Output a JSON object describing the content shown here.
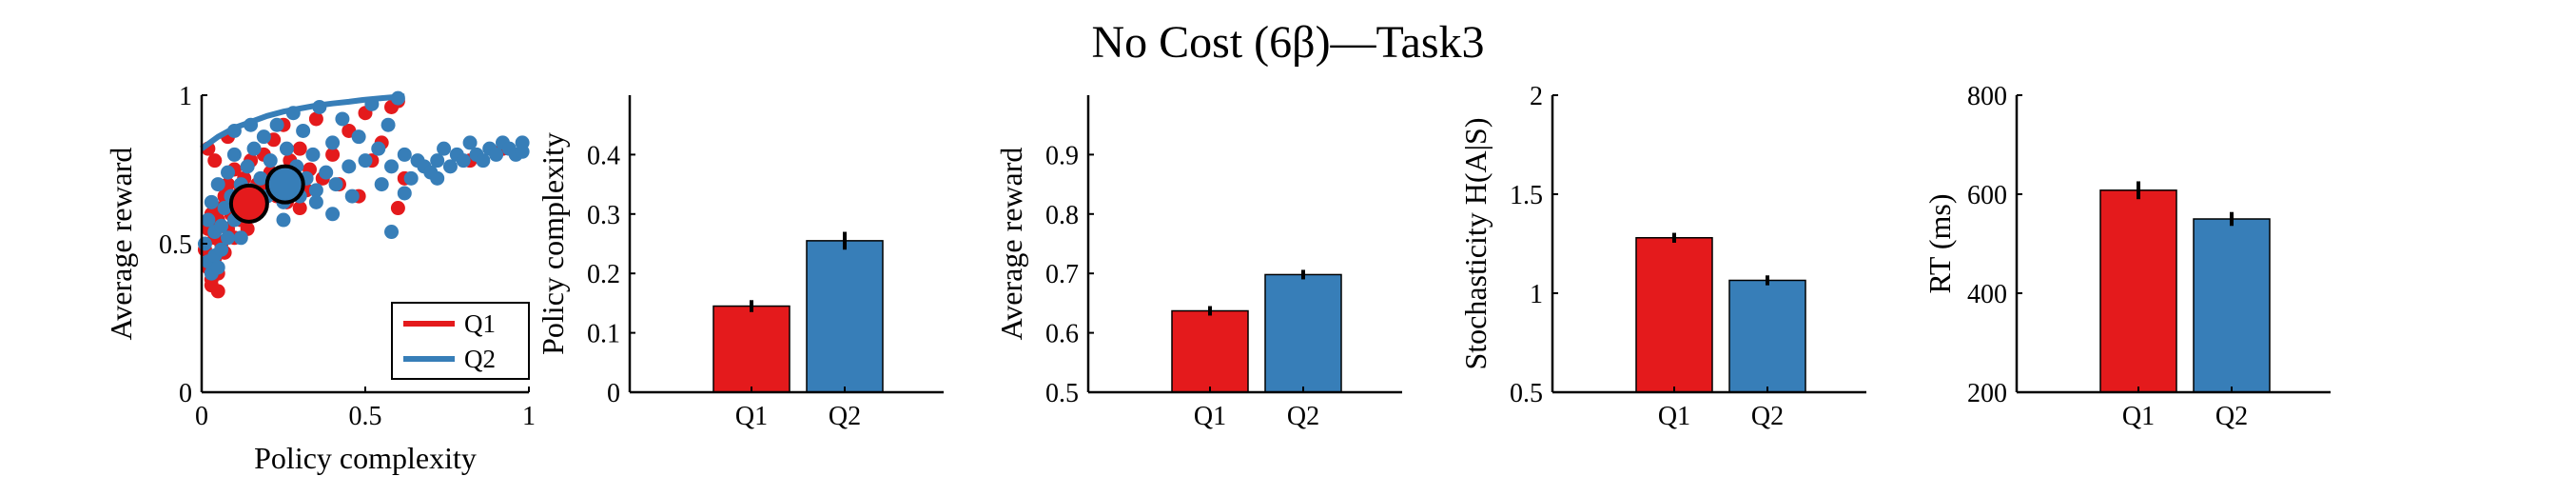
{
  "figure": {
    "title": "No Cost (6β)—Task3",
    "colors": {
      "Q1": "#e41a1c",
      "Q2": "#377eb8"
    }
  },
  "chart_data": [
    {
      "type": "scatter",
      "title": "",
      "xlabel": "Policy complexity",
      "ylabel": "Average reward",
      "xlim": [
        0,
        1
      ],
      "ylim": [
        0,
        1
      ],
      "xticks": [
        "0",
        "0.5",
        "1"
      ],
      "yticks": [
        "0",
        "0.5",
        "1"
      ],
      "legend": {
        "placement": "bottom-right",
        "entries": [
          "Q1",
          "Q2"
        ]
      },
      "series": [
        {
          "name": "Q1",
          "color": "#e41a1c",
          "points": [
            [
              0.01,
              0.48
            ],
            [
              0.02,
              0.55
            ],
            [
              0.02,
              0.42
            ],
            [
              0.03,
              0.6
            ],
            [
              0.03,
              0.38
            ],
            [
              0.04,
              0.52
            ],
            [
              0.04,
              0.45
            ],
            [
              0.05,
              0.58
            ],
            [
              0.05,
              0.4
            ],
            [
              0.06,
              0.62
            ],
            [
              0.06,
              0.5
            ],
            [
              0.07,
              0.47
            ],
            [
              0.07,
              0.66
            ],
            [
              0.08,
              0.55
            ],
            [
              0.08,
              0.7
            ],
            [
              0.09,
              0.6
            ],
            [
              0.1,
              0.52
            ],
            [
              0.1,
              0.75
            ],
            [
              0.11,
              0.63
            ],
            [
              0.12,
              0.58
            ],
            [
              0.12,
              0.68
            ],
            [
              0.13,
              0.72
            ],
            [
              0.14,
              0.55
            ],
            [
              0.15,
              0.65
            ],
            [
              0.15,
              0.78
            ],
            [
              0.16,
              0.6
            ],
            [
              0.17,
              0.7
            ],
            [
              0.18,
              0.62
            ],
            [
              0.19,
              0.8
            ],
            [
              0.2,
              0.68
            ],
            [
              0.21,
              0.74
            ],
            [
              0.22,
              0.85
            ],
            [
              0.23,
              0.66
            ],
            [
              0.24,
              0.72
            ],
            [
              0.25,
              0.9
            ],
            [
              0.26,
              0.64
            ],
            [
              0.27,
              0.78
            ],
            [
              0.28,
              0.7
            ],
            [
              0.3,
              0.82
            ],
            [
              0.32,
              0.68
            ],
            [
              0.33,
              0.75
            ],
            [
              0.35,
              0.92
            ],
            [
              0.37,
              0.72
            ],
            [
              0.4,
              0.8
            ],
            [
              0.42,
              0.7
            ],
            [
              0.45,
              0.88
            ],
            [
              0.48,
              0.66
            ],
            [
              0.5,
              0.94
            ],
            [
              0.52,
              0.78
            ],
            [
              0.55,
              0.84
            ],
            [
              0.58,
              0.96
            ],
            [
              0.6,
              0.98
            ],
            [
              0.62,
              0.72
            ],
            [
              0.02,
              0.82
            ],
            [
              0.04,
              0.78
            ],
            [
              0.03,
              0.36
            ],
            [
              0.05,
              0.34
            ],
            [
              0.08,
              0.86
            ],
            [
              0.3,
              0.62
            ],
            [
              0.6,
              0.62
            ],
            [
              0.82,
              0.78
            ],
            [
              0.92,
              0.82
            ]
          ],
          "mean": [
            0.145,
            0.635
          ]
        },
        {
          "name": "Q2",
          "color": "#377eb8",
          "points": [
            [
              0.01,
              0.5
            ],
            [
              0.02,
              0.58
            ],
            [
              0.02,
              0.44
            ],
            [
              0.03,
              0.64
            ],
            [
              0.04,
              0.54
            ],
            [
              0.04,
              0.46
            ],
            [
              0.05,
              0.7
            ],
            [
              0.06,
              0.56
            ],
            [
              0.06,
              0.48
            ],
            [
              0.07,
              0.62
            ],
            [
              0.08,
              0.74
            ],
            [
              0.08,
              0.52
            ],
            [
              0.09,
              0.66
            ],
            [
              0.1,
              0.58
            ],
            [
              0.1,
              0.8
            ],
            [
              0.11,
              0.64
            ],
            [
              0.12,
              0.7
            ],
            [
              0.13,
              0.6
            ],
            [
              0.14,
              0.76
            ],
            [
              0.15,
              0.68
            ],
            [
              0.16,
              0.82
            ],
            [
              0.17,
              0.62
            ],
            [
              0.18,
              0.72
            ],
            [
              0.19,
              0.86
            ],
            [
              0.2,
              0.66
            ],
            [
              0.21,
              0.78
            ],
            [
              0.22,
              0.7
            ],
            [
              0.23,
              0.9
            ],
            [
              0.24,
              0.74
            ],
            [
              0.25,
              0.64
            ],
            [
              0.26,
              0.82
            ],
            [
              0.27,
              0.7
            ],
            [
              0.28,
              0.94
            ],
            [
              0.29,
              0.76
            ],
            [
              0.3,
              0.66
            ],
            [
              0.31,
              0.88
            ],
            [
              0.32,
              0.72
            ],
            [
              0.34,
              0.8
            ],
            [
              0.35,
              0.68
            ],
            [
              0.36,
              0.96
            ],
            [
              0.38,
              0.74
            ],
            [
              0.4,
              0.84
            ],
            [
              0.41,
              0.7
            ],
            [
              0.43,
              0.92
            ],
            [
              0.45,
              0.76
            ],
            [
              0.46,
              0.66
            ],
            [
              0.48,
              0.86
            ],
            [
              0.5,
              0.78
            ],
            [
              0.52,
              0.97
            ],
            [
              0.54,
              0.82
            ],
            [
              0.55,
              0.7
            ],
            [
              0.57,
              0.9
            ],
            [
              0.58,
              0.76
            ],
            [
              0.6,
              0.99
            ],
            [
              0.62,
              0.8
            ],
            [
              0.64,
              0.72
            ],
            [
              0.66,
              0.78
            ],
            [
              0.68,
              0.76
            ],
            [
              0.7,
              0.74
            ],
            [
              0.72,
              0.78
            ],
            [
              0.74,
              0.82
            ],
            [
              0.76,
              0.76
            ],
            [
              0.78,
              0.8
            ],
            [
              0.8,
              0.78
            ],
            [
              0.82,
              0.84
            ],
            [
              0.84,
              0.8
            ],
            [
              0.86,
              0.78
            ],
            [
              0.88,
              0.82
            ],
            [
              0.9,
              0.8
            ],
            [
              0.92,
              0.84
            ],
            [
              0.94,
              0.82
            ],
            [
              0.96,
              0.8
            ],
            [
              0.98,
              0.84
            ],
            [
              0.98,
              0.81
            ],
            [
              0.03,
              0.4
            ],
            [
              0.05,
              0.42
            ],
            [
              0.12,
              0.52
            ],
            [
              0.25,
              0.58
            ],
            [
              0.4,
              0.6
            ],
            [
              0.58,
              0.54
            ],
            [
              0.62,
              0.67
            ],
            [
              0.35,
              0.64
            ],
            [
              0.72,
              0.72
            ],
            [
              0.15,
              0.9
            ],
            [
              0.1,
              0.88
            ]
          ],
          "mean": [
            0.255,
            0.7
          ]
        }
      ],
      "frontier": [
        [
          0.0,
          0.82
        ],
        [
          0.05,
          0.86
        ],
        [
          0.1,
          0.89
        ],
        [
          0.15,
          0.91
        ],
        [
          0.2,
          0.93
        ],
        [
          0.25,
          0.945
        ],
        [
          0.3,
          0.955
        ],
        [
          0.35,
          0.965
        ],
        [
          0.4,
          0.972
        ],
        [
          0.45,
          0.978
        ],
        [
          0.5,
          0.985
        ],
        [
          0.55,
          0.99
        ],
        [
          0.6,
          0.995
        ],
        [
          0.62,
          0.996
        ]
      ]
    },
    {
      "type": "bar",
      "title": "",
      "xlabel": "",
      "ylabel": "Policy complexity",
      "categories": [
        "Q1",
        "Q2"
      ],
      "values": [
        0.145,
        0.255
      ],
      "errors": [
        0.01,
        0.015
      ],
      "ylim": [
        0,
        0.5
      ],
      "yticks": [
        "0",
        "0.1",
        "0.2",
        "0.3",
        "0.4"
      ]
    },
    {
      "type": "bar",
      "title": "",
      "xlabel": "",
      "ylabel": "Average reward",
      "categories": [
        "Q1",
        "Q2"
      ],
      "values": [
        0.637,
        0.698
      ],
      "errors": [
        0.008,
        0.008
      ],
      "ylim": [
        0.5,
        1.0
      ],
      "yticks": [
        "0.5",
        "0.6",
        "0.7",
        "0.8",
        "0.9"
      ]
    },
    {
      "type": "bar",
      "title": "",
      "xlabel": "",
      "ylabel": "Stochasticity H(A|S)",
      "categories": [
        "Q1",
        "Q2"
      ],
      "values": [
        1.28,
        1.065
      ],
      "errors": [
        0.025,
        0.025
      ],
      "ylim": [
        0.5,
        2.0
      ],
      "yticks": [
        "0.5",
        "1",
        "1.5",
        "2"
      ]
    },
    {
      "type": "bar",
      "title": "",
      "xlabel": "",
      "ylabel": "RT (ms)",
      "categories": [
        "Q1",
        "Q2"
      ],
      "values": [
        608,
        550
      ],
      "errors": [
        18,
        14
      ],
      "ylim": [
        200,
        800
      ],
      "yticks": [
        "200",
        "400",
        "600",
        "800"
      ]
    }
  ]
}
